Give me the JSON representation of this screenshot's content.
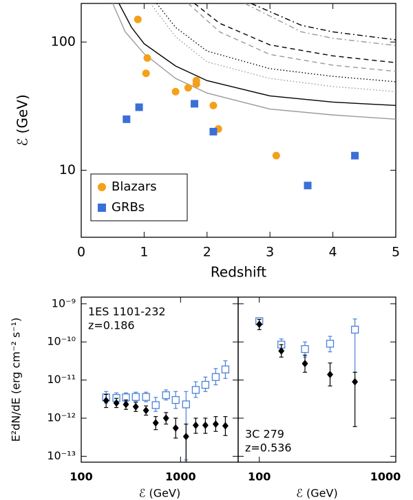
{
  "chart_data": [
    {
      "type": "scatter",
      "xlabel": "Redshift",
      "ylabel": "ℰ (GeV)",
      "ylog": true,
      "xlim": [
        0,
        5
      ],
      "xticks": [
        0,
        1,
        2,
        3,
        4,
        5
      ],
      "ylim": [
        3,
        200
      ],
      "yticks": [
        10,
        100
      ],
      "legend": "lower-left",
      "series": [
        {
          "name": "Blazars",
          "color": "#f5a01a",
          "marker": "circle",
          "x": [
            0.9,
            1.05,
            1.03,
            1.5,
            1.7,
            1.83,
            1.83,
            2.1,
            2.18,
            3.1
          ],
          "values": [
            150,
            75,
            57,
            41,
            44,
            50,
            47,
            32,
            21,
            13
          ]
        },
        {
          "name": "GRBs",
          "color": "#3b6fd8",
          "marker": "square",
          "x": [
            0.72,
            0.92,
            1.8,
            2.1,
            3.6,
            4.35
          ],
          "values": [
            25,
            31,
            33,
            20,
            7.6,
            13
          ]
        }
      ],
      "curves": [
        {
          "color": "#000000",
          "dash": "solid",
          "x": [
            0.6,
            0.8,
            1,
            1.5,
            2,
            3,
            4,
            5
          ],
          "values": [
            200,
            130,
            97,
            65,
            50,
            38,
            34,
            32
          ]
        },
        {
          "color": "#999999",
          "dash": "solid",
          "x": [
            0.5,
            0.7,
            1,
            1.5,
            2,
            3,
            4,
            5
          ],
          "values": [
            200,
            120,
            81,
            52,
            40,
            30,
            27,
            25
          ]
        },
        {
          "color": "#000000",
          "dash": "dotted",
          "x": [
            1.2,
            1.5,
            2,
            3,
            4,
            5
          ],
          "values": [
            200,
            130,
            85,
            62,
            54,
            49
          ]
        },
        {
          "color": "#999999",
          "dash": "dotted",
          "x": [
            1.1,
            1.5,
            2,
            3,
            4,
            5
          ],
          "values": [
            200,
            110,
            70,
            52,
            45,
            41
          ]
        },
        {
          "color": "#000000",
          "dash": "dashed",
          "x": [
            1.8,
            2.2,
            3,
            4,
            5
          ],
          "values": [
            200,
            140,
            95,
            78,
            69
          ]
        },
        {
          "color": "#999999",
          "dash": "dashed",
          "x": [
            1.7,
            2.2,
            3,
            4,
            5
          ],
          "values": [
            200,
            120,
            80,
            66,
            59
          ]
        },
        {
          "color": "#000000",
          "dash": "dashdot",
          "x": [
            2.7,
            3.5,
            4,
            5
          ],
          "values": [
            200,
            135,
            120,
            104
          ]
        },
        {
          "color": "#999999",
          "dash": "dashdot",
          "x": [
            2.6,
            3.5,
            4,
            5
          ],
          "values": [
            200,
            120,
            107,
            94
          ]
        }
      ]
    },
    {
      "type": "errorbar",
      "xlabel": "ℰ (GeV)",
      "ylabel": "E²dN/dE (erg cm⁻² s⁻¹)",
      "xlog": true,
      "ylog": true,
      "xlim": [
        100,
        3800
      ],
      "xticks": [
        100,
        1000
      ],
      "ylim": [
        7e-14,
        1.5e-09
      ],
      "yticks": [
        {
          "value": 1e-09,
          "label": "10⁻⁹"
        },
        {
          "value": 1e-10,
          "label": "10⁻¹⁰"
        },
        {
          "value": 1e-11,
          "label": "10⁻¹¹"
        },
        {
          "value": 1e-12,
          "label": "10⁻¹²"
        },
        {
          "value": 1e-13,
          "label": "10⁻¹³"
        }
      ],
      "annotations": [
        "1ES 1101-232",
        "z=0.186"
      ],
      "annotation_corner": "upper-left",
      "series": [
        {
          "color": "#4a80d8",
          "marker": "open-square",
          "x": [
            178,
            226,
            282,
            354,
            449,
            562,
            714,
            893,
            1136,
            1422,
            1778,
            2259,
            2825
          ],
          "values": [
            3.5e-12,
            3.4e-12,
            3.5e-12,
            3.6e-12,
            3.6e-12,
            2.2e-12,
            4e-12,
            3e-12,
            2.3e-12,
            5.5e-12,
            7.5e-12,
            1.2e-11,
            1.9e-11
          ],
          "low": [
            2.5e-12,
            2.6e-12,
            2.7e-12,
            2.8e-12,
            2.7e-12,
            1.5e-12,
            3e-12,
            1.8e-12,
            8e-14,
            3.5e-12,
            5e-12,
            7.5e-12,
            1.1e-11
          ],
          "high": [
            5e-12,
            4.6e-12,
            4.6e-12,
            4.8e-12,
            4.8e-12,
            3.5e-12,
            5.5e-12,
            5e-12,
            5e-12,
            9e-12,
            1.2e-11,
            2e-11,
            3.2e-11
          ]
        },
        {
          "color": "#000000",
          "marker": "diamond",
          "x": [
            178,
            226,
            282,
            354,
            449,
            562,
            714,
            893,
            1136,
            1422,
            1778,
            2259,
            2825
          ],
          "values": [
            2.9e-12,
            2.5e-12,
            2.3e-12,
            2e-12,
            1.6e-12,
            7.5e-13,
            1e-12,
            5.5e-13,
            3.3e-13,
            6.5e-13,
            6.5e-13,
            7e-13,
            6.3e-13
          ],
          "low": [
            1.9e-12,
            1.9e-12,
            1.7e-12,
            1.5e-12,
            1.2e-12,
            5e-13,
            7e-13,
            3e-13,
            7e-14,
            4e-13,
            4e-13,
            4.5e-13,
            3.5e-13
          ],
          "high": [
            4.2e-12,
            3.3e-12,
            3e-12,
            2.6e-12,
            2.1e-12,
            1.1e-12,
            1.4e-12,
            1e-12,
            7e-13,
            1e-12,
            1e-12,
            1.1e-12,
            1.1e-12
          ]
        }
      ]
    },
    {
      "type": "errorbar",
      "xlabel": "ℰ (GeV)",
      "xlog": true,
      "ylog": true,
      "xlim": [
        70,
        1000
      ],
      "xticks": [
        100,
        1000
      ],
      "ylim": [
        7e-14,
        1.5e-09
      ],
      "annotations": [
        "3C 279",
        "z=0.536"
      ],
      "annotation_corner": "lower-left",
      "series": [
        {
          "color": "#4a80d8",
          "marker": "open-square",
          "x": [
            100,
            145,
            216,
            330,
            502
          ],
          "values": [
            3.5e-10,
            8.5e-11,
            6.5e-11,
            9e-11,
            2.1e-10
          ],
          "low": [
            2.8e-10,
            6e-11,
            4e-11,
            5.5e-11,
            1.6e-11
          ],
          "high": [
            4.3e-10,
            1.2e-10,
            1e-10,
            1.4e-10,
            4e-10
          ]
        },
        {
          "color": "#000000",
          "marker": "diamond",
          "x": [
            100,
            145,
            216,
            330,
            502
          ],
          "values": [
            2.9e-10,
            5.8e-11,
            2.7e-11,
            1.4e-11,
            9e-12
          ],
          "low": [
            2.1e-10,
            4e-11,
            1.6e-11,
            7e-12,
            6e-13
          ],
          "high": [
            3.9e-10,
            8.5e-11,
            4.5e-11,
            2.8e-11,
            1.6e-11
          ]
        }
      ]
    }
  ]
}
